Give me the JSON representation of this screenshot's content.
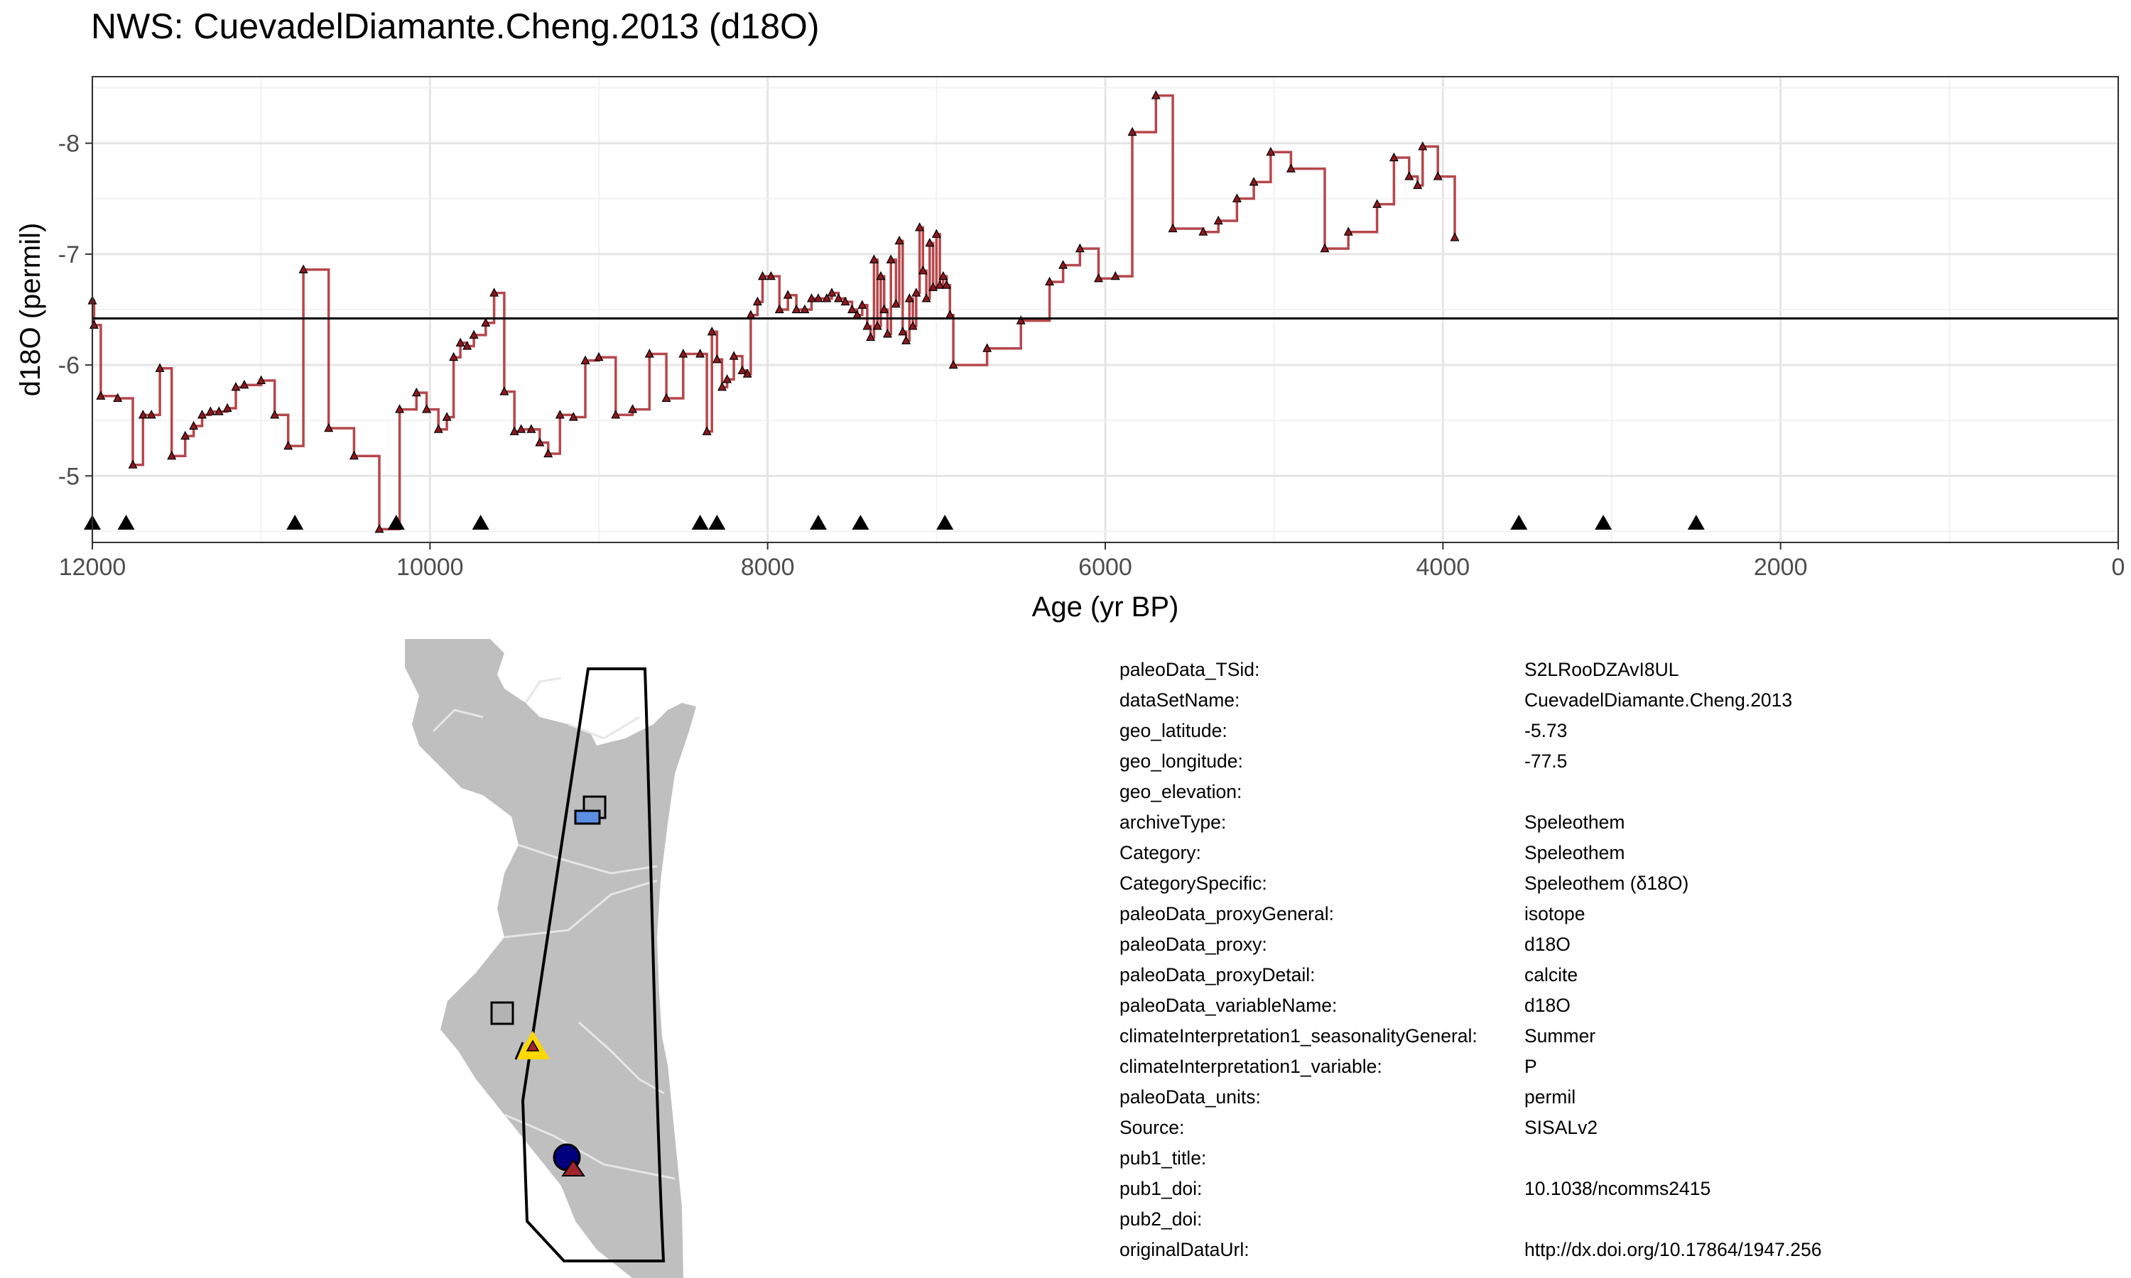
{
  "title": "NWS: CuevadelDiamante.Cheng.2013 (d18O)",
  "chart_data": {
    "type": "line",
    "step": true,
    "xlabel": "Age (yr BP)",
    "ylabel": "d18O (permil)",
    "xlim": [
      12000,
      0
    ],
    "ylim": [
      -4.4,
      -8.6
    ],
    "x_ticks": [
      12000,
      10000,
      8000,
      6000,
      4000,
      2000,
      0
    ],
    "y_ticks": [
      -5,
      -6,
      -7,
      -8
    ],
    "grid": true,
    "reference_line": -6.42,
    "series": [
      {
        "color": "#b5474b",
        "points": [
          [
            12000,
            -6.58
          ],
          [
            11990,
            -6.36
          ],
          [
            11950,
            -5.72
          ],
          [
            11850,
            -5.7
          ],
          [
            11760,
            -5.1
          ],
          [
            11700,
            -5.55
          ],
          [
            11650,
            -5.55
          ],
          [
            11600,
            -5.97
          ],
          [
            11530,
            -5.18
          ],
          [
            11450,
            -5.36
          ],
          [
            11400,
            -5.45
          ],
          [
            11350,
            -5.55
          ],
          [
            11300,
            -5.58
          ],
          [
            11250,
            -5.58
          ],
          [
            11200,
            -5.61
          ],
          [
            11150,
            -5.8
          ],
          [
            11100,
            -5.82
          ],
          [
            11000,
            -5.86
          ],
          [
            10920,
            -5.55
          ],
          [
            10840,
            -5.27
          ],
          [
            10750,
            -6.86
          ],
          [
            10600,
            -5.43
          ],
          [
            10450,
            -5.18
          ],
          [
            10300,
            -4.52
          ],
          [
            10180,
            -5.6
          ],
          [
            10080,
            -5.75
          ],
          [
            10020,
            -5.6
          ],
          [
            9950,
            -5.42
          ],
          [
            9900,
            -5.53
          ],
          [
            9860,
            -6.07
          ],
          [
            9820,
            -6.2
          ],
          [
            9780,
            -6.17
          ],
          [
            9740,
            -6.27
          ],
          [
            9670,
            -6.38
          ],
          [
            9620,
            -6.65
          ],
          [
            9560,
            -5.76
          ],
          [
            9500,
            -5.4
          ],
          [
            9460,
            -5.42
          ],
          [
            9400,
            -5.42
          ],
          [
            9350,
            -5.3
          ],
          [
            9300,
            -5.2
          ],
          [
            9230,
            -5.55
          ],
          [
            9150,
            -5.53
          ],
          [
            9080,
            -6.04
          ],
          [
            9000,
            -6.07
          ],
          [
            8900,
            -5.55
          ],
          [
            8800,
            -5.6
          ],
          [
            8700,
            -6.1
          ],
          [
            8600,
            -5.7
          ],
          [
            8500,
            -6.1
          ],
          [
            8400,
            -6.1
          ],
          [
            8360,
            -5.4
          ],
          [
            8330,
            -6.3
          ],
          [
            8300,
            -6.05
          ],
          [
            8270,
            -5.8
          ],
          [
            8240,
            -5.87
          ],
          [
            8200,
            -6.08
          ],
          [
            8150,
            -5.95
          ],
          [
            8120,
            -5.92
          ],
          [
            8100,
            -6.45
          ],
          [
            8060,
            -6.57
          ],
          [
            8030,
            -6.8
          ],
          [
            7980,
            -6.8
          ],
          [
            7930,
            -6.5
          ],
          [
            7880,
            -6.63
          ],
          [
            7830,
            -6.5
          ],
          [
            7780,
            -6.5
          ],
          [
            7740,
            -6.6
          ],
          [
            7700,
            -6.6
          ],
          [
            7650,
            -6.6
          ],
          [
            7620,
            -6.65
          ],
          [
            7580,
            -6.6
          ],
          [
            7540,
            -6.57
          ],
          [
            7500,
            -6.5
          ],
          [
            7470,
            -6.45
          ],
          [
            7440,
            -6.54
          ],
          [
            7410,
            -6.35
          ],
          [
            7390,
            -6.25
          ],
          [
            7370,
            -6.95
          ],
          [
            7350,
            -6.35
          ],
          [
            7330,
            -6.8
          ],
          [
            7310,
            -6.5
          ],
          [
            7290,
            -6.28
          ],
          [
            7270,
            -6.95
          ],
          [
            7240,
            -6.55
          ],
          [
            7220,
            -7.12
          ],
          [
            7200,
            -6.3
          ],
          [
            7180,
            -6.22
          ],
          [
            7160,
            -6.6
          ],
          [
            7140,
            -6.35
          ],
          [
            7120,
            -6.65
          ],
          [
            7100,
            -7.24
          ],
          [
            7080,
            -6.85
          ],
          [
            7060,
            -6.6
          ],
          [
            7040,
            -7.1
          ],
          [
            7020,
            -6.7
          ],
          [
            7000,
            -7.18
          ],
          [
            6980,
            -6.72
          ],
          [
            6960,
            -6.8
          ],
          [
            6940,
            -6.72
          ],
          [
            6920,
            -6.45
          ],
          [
            6900,
            -6.0
          ],
          [
            6700,
            -6.15
          ],
          [
            6500,
            -6.4
          ],
          [
            6330,
            -6.75
          ],
          [
            6250,
            -6.9
          ],
          [
            6150,
            -7.05
          ],
          [
            6040,
            -6.78
          ],
          [
            5940,
            -6.8
          ],
          [
            5840,
            -8.1
          ],
          [
            5700,
            -8.43
          ],
          [
            5600,
            -7.23
          ],
          [
            5420,
            -7.2
          ],
          [
            5330,
            -7.3
          ],
          [
            5220,
            -7.5
          ],
          [
            5120,
            -7.65
          ],
          [
            5020,
            -7.92
          ],
          [
            4900,
            -7.77
          ],
          [
            4700,
            -7.05
          ],
          [
            4560,
            -7.2
          ],
          [
            4390,
            -7.45
          ],
          [
            4290,
            -7.87
          ],
          [
            4200,
            -7.7
          ],
          [
            4150,
            -7.62
          ],
          [
            4120,
            -7.97
          ],
          [
            4030,
            -7.7
          ],
          [
            3930,
            -7.15
          ]
        ]
      }
    ],
    "age_control_points": [
      12000,
      11800,
      10800,
      10200,
      9700,
      8400,
      8300,
      7700,
      7450,
      6950,
      3550,
      3050,
      2500
    ]
  },
  "map": {
    "land_color": "#bfbfbf",
    "border_color": "#e6e6e6",
    "markers": [
      {
        "shape": "square",
        "color": "#b3b3b3"
      },
      {
        "shape": "square",
        "color": "#5b8fe3"
      },
      {
        "shape": "square",
        "color": "#b3b3b3"
      },
      {
        "shape": "triangle",
        "color": "#ffd700",
        "inner_color": "#a1232c"
      },
      {
        "shape": "circle",
        "color": "#00007f"
      },
      {
        "shape": "triangle",
        "color": "#a1232c"
      }
    ]
  },
  "metadata": [
    {
      "key": "paleoData_TSid:",
      "value": "S2LRooDZAvI8UL"
    },
    {
      "key": "dataSetName:",
      "value": "CuevadelDiamante.Cheng.2013"
    },
    {
      "key": "geo_latitude:",
      "value": "-5.73"
    },
    {
      "key": "geo_longitude:",
      "value": "-77.5"
    },
    {
      "key": "geo_elevation:",
      "value": ""
    },
    {
      "key": "archiveType:",
      "value": "Speleothem"
    },
    {
      "key": "Category:",
      "value": "Speleothem"
    },
    {
      "key": "CategorySpecific:",
      "value": "Speleothem (δ18O)"
    },
    {
      "key": "paleoData_proxyGeneral:",
      "value": "isotope"
    },
    {
      "key": "paleoData_proxy:",
      "value": "d18O"
    },
    {
      "key": "paleoData_proxyDetail:",
      "value": "calcite"
    },
    {
      "key": "paleoData_variableName:",
      "value": "d18O"
    },
    {
      "key": "climateInterpretation1_seasonalityGeneral:",
      "value": "Summer"
    },
    {
      "key": "climateInterpretation1_variable:",
      "value": "P"
    },
    {
      "key": "paleoData_units:",
      "value": "permil"
    },
    {
      "key": "Source:",
      "value": "SISALv2"
    },
    {
      "key": "pub1_title:",
      "value": ""
    },
    {
      "key": "pub1_doi:",
      "value": "10.1038/ncomms2415"
    },
    {
      "key": "pub2_doi:",
      "value": ""
    },
    {
      "key": "originalDataUrl:",
      "value": "http://dx.doi.org/10.17864/1947.256"
    }
  ]
}
